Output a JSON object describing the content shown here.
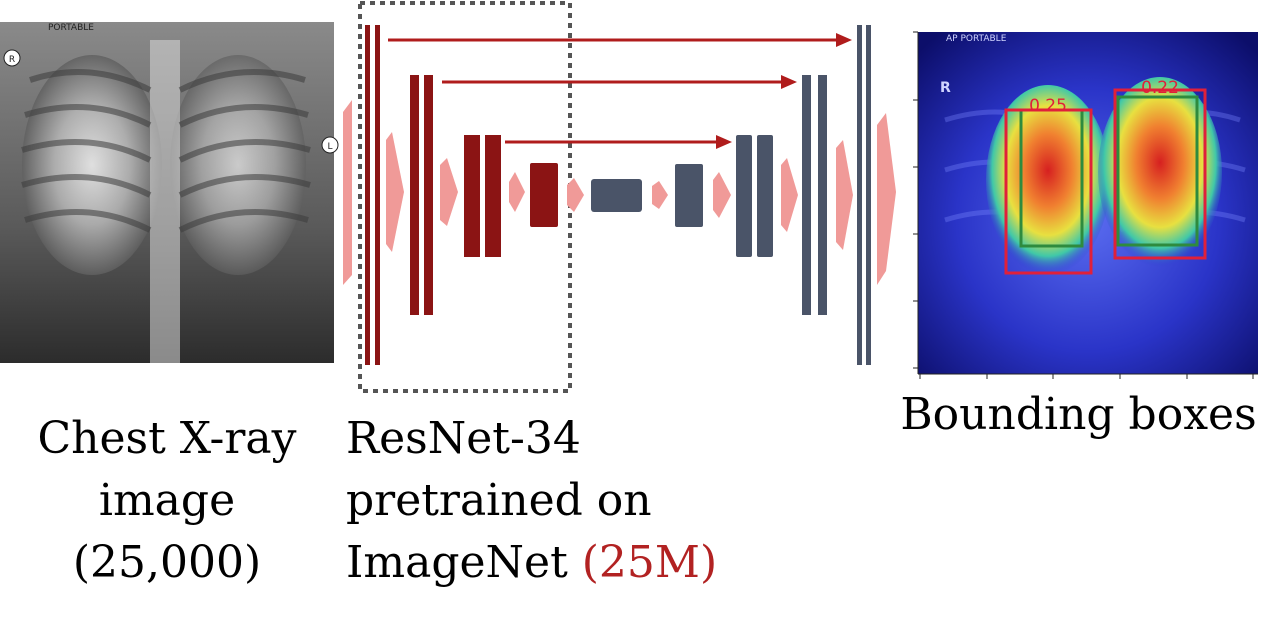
{
  "input": {
    "caption_lines": [
      "Chest X-ray",
      "image",
      "(25,000)"
    ],
    "film_label": "PORTABLE",
    "left_marker": "R",
    "right_marker": "L"
  },
  "encoder": {
    "caption_lines": [
      "ResNet-34",
      "pretrained on",
      "ImageNet "
    ],
    "caption_accent": "(25M)"
  },
  "output": {
    "caption": "Bounding boxes",
    "film_label": "AP PORTABLE",
    "left_marker": "R",
    "box_scores": [
      "0.25",
      "0.22"
    ]
  },
  "colors": {
    "encoder_block": "#8b1414",
    "decoder_block": "#4a5468",
    "flow_arrow": "#f09a98",
    "skip_arrow": "#b01c1c",
    "prediction_box": "#e0203a",
    "ground_truth_box": "#2e8b3e",
    "dashed_frame": "#555555"
  }
}
